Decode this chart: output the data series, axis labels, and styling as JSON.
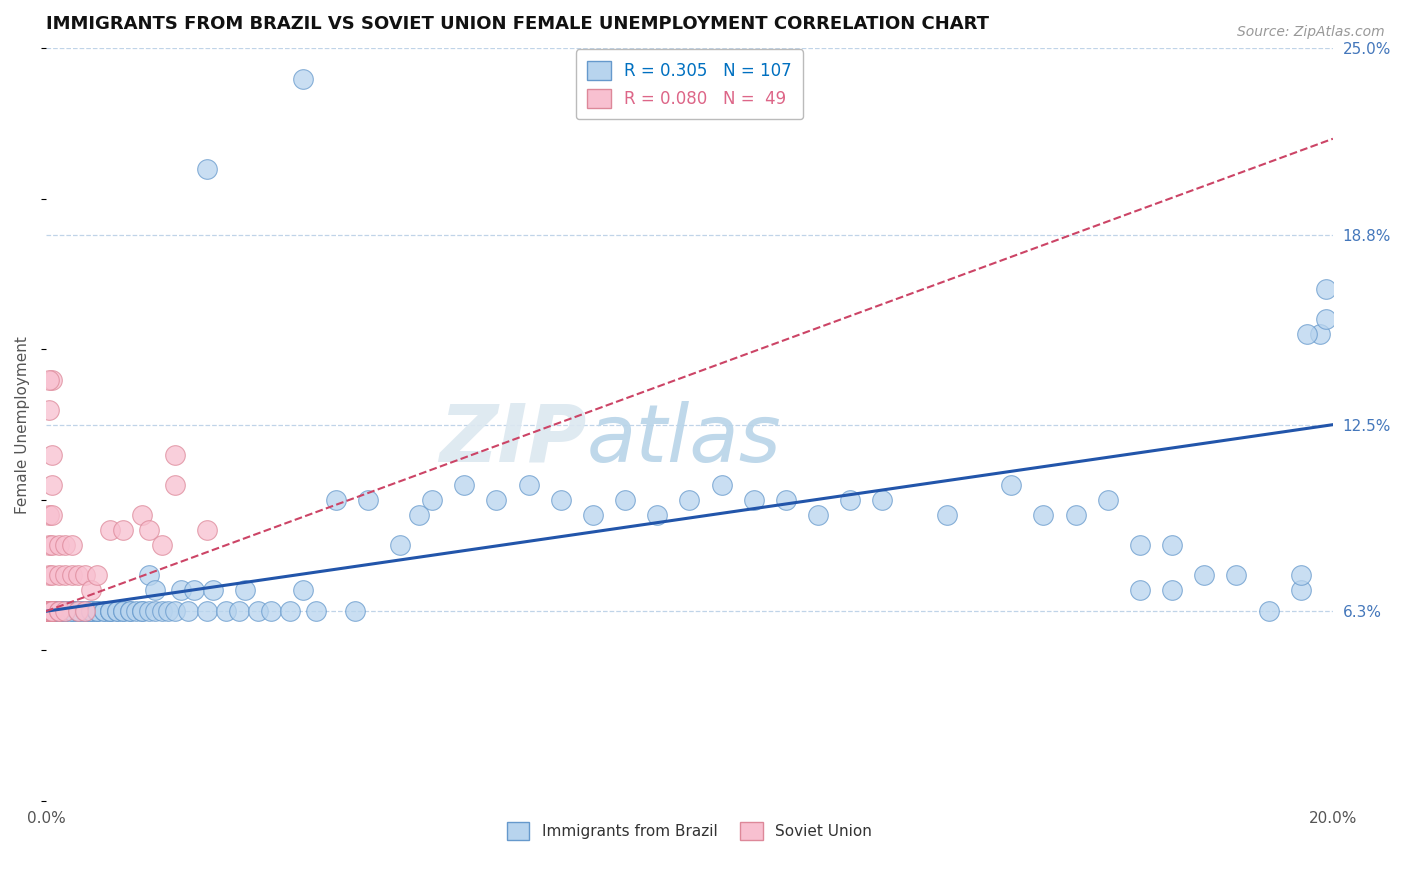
{
  "title": "IMMIGRANTS FROM BRAZIL VS SOVIET UNION FEMALE UNEMPLOYMENT CORRELATION CHART",
  "source_text": "Source: ZipAtlas.com",
  "ylabel": "Female Unemployment",
  "xlim": [
    0.0,
    0.2
  ],
  "ylim": [
    0.0,
    0.25
  ],
  "ytick_vals": [
    0.0,
    0.063,
    0.125,
    0.188,
    0.25
  ],
  "ytick_labels": [
    "",
    "6.3%",
    "12.5%",
    "18.8%",
    "25.0%"
  ],
  "brazil_R": 0.305,
  "brazil_N": 107,
  "soviet_R": 0.08,
  "soviet_N": 49,
  "brazil_color": "#b8d4ee",
  "brazil_edge_color": "#6699cc",
  "soviet_color": "#f8c0d0",
  "soviet_edge_color": "#dd8899",
  "brazil_line_color": "#2255aa",
  "soviet_line_color": "#cc4466",
  "watermark": "ZIPatlas",
  "watermark_color": "#ccdded",
  "legend_color_brazil": "#0070c0",
  "legend_color_soviet": "#dd6688",
  "brazil_trend": [
    0.063,
    0.125
  ],
  "soviet_trend": [
    0.063,
    0.22
  ],
  "brazil_pts_x": [
    0.001,
    0.001,
    0.001,
    0.001,
    0.001,
    0.001,
    0.001,
    0.001,
    0.001,
    0.001,
    0.002,
    0.002,
    0.002,
    0.002,
    0.002,
    0.003,
    0.003,
    0.003,
    0.003,
    0.004,
    0.004,
    0.004,
    0.005,
    0.005,
    0.005,
    0.005,
    0.006,
    0.006,
    0.006,
    0.006,
    0.007,
    0.007,
    0.007,
    0.008,
    0.008,
    0.008,
    0.009,
    0.009,
    0.01,
    0.01,
    0.01,
    0.011,
    0.011,
    0.012,
    0.012,
    0.013,
    0.013,
    0.014,
    0.015,
    0.015,
    0.016,
    0.016,
    0.017,
    0.017,
    0.018,
    0.019,
    0.02,
    0.021,
    0.022,
    0.023,
    0.025,
    0.026,
    0.028,
    0.03,
    0.031,
    0.033,
    0.035,
    0.038,
    0.04,
    0.042,
    0.045,
    0.048,
    0.05,
    0.055,
    0.058,
    0.06,
    0.065,
    0.07,
    0.075,
    0.08,
    0.085,
    0.09,
    0.095,
    0.1,
    0.105,
    0.11,
    0.115,
    0.12,
    0.125,
    0.13,
    0.14,
    0.15,
    0.155,
    0.16,
    0.165,
    0.17,
    0.17,
    0.175,
    0.175,
    0.18,
    0.185,
    0.19,
    0.195,
    0.195,
    0.198,
    0.199,
    0.199
  ],
  "brazil_pts_y": [
    0.063,
    0.063,
    0.063,
    0.063,
    0.063,
    0.063,
    0.063,
    0.063,
    0.063,
    0.063,
    0.063,
    0.063,
    0.063,
    0.063,
    0.063,
    0.063,
    0.063,
    0.063,
    0.063,
    0.063,
    0.063,
    0.063,
    0.063,
    0.063,
    0.063,
    0.063,
    0.063,
    0.063,
    0.063,
    0.063,
    0.063,
    0.063,
    0.063,
    0.063,
    0.063,
    0.063,
    0.063,
    0.063,
    0.063,
    0.063,
    0.063,
    0.063,
    0.063,
    0.063,
    0.063,
    0.063,
    0.063,
    0.063,
    0.063,
    0.063,
    0.063,
    0.075,
    0.063,
    0.07,
    0.063,
    0.063,
    0.063,
    0.07,
    0.063,
    0.07,
    0.063,
    0.07,
    0.063,
    0.063,
    0.07,
    0.063,
    0.063,
    0.063,
    0.07,
    0.063,
    0.1,
    0.063,
    0.1,
    0.085,
    0.095,
    0.1,
    0.105,
    0.1,
    0.105,
    0.1,
    0.095,
    0.1,
    0.095,
    0.1,
    0.105,
    0.1,
    0.1,
    0.095,
    0.1,
    0.1,
    0.095,
    0.105,
    0.095,
    0.095,
    0.1,
    0.07,
    0.085,
    0.07,
    0.085,
    0.075,
    0.075,
    0.063,
    0.07,
    0.075,
    0.155,
    0.16,
    0.17
  ],
  "soviet_pts_x": [
    0.0005,
    0.0005,
    0.0005,
    0.0005,
    0.0005,
    0.0005,
    0.0005,
    0.0005,
    0.0005,
    0.0005,
    0.0005,
    0.0005,
    0.0005,
    0.001,
    0.001,
    0.001,
    0.001,
    0.001,
    0.001,
    0.001,
    0.001,
    0.001,
    0.001,
    0.001,
    0.001,
    0.001,
    0.002,
    0.002,
    0.002,
    0.002,
    0.003,
    0.003,
    0.003,
    0.004,
    0.004,
    0.005,
    0.005,
    0.006,
    0.006,
    0.007,
    0.008,
    0.01,
    0.012,
    0.015,
    0.016,
    0.018,
    0.02,
    0.02,
    0.025
  ],
  "soviet_pts_y": [
    0.063,
    0.063,
    0.063,
    0.063,
    0.063,
    0.063,
    0.063,
    0.063,
    0.063,
    0.063,
    0.075,
    0.085,
    0.095,
    0.063,
    0.063,
    0.063,
    0.063,
    0.063,
    0.063,
    0.063,
    0.075,
    0.085,
    0.095,
    0.105,
    0.115,
    0.14,
    0.063,
    0.063,
    0.075,
    0.085,
    0.063,
    0.075,
    0.085,
    0.075,
    0.085,
    0.063,
    0.075,
    0.063,
    0.075,
    0.07,
    0.075,
    0.09,
    0.09,
    0.095,
    0.09,
    0.085,
    0.105,
    0.115,
    0.09
  ]
}
